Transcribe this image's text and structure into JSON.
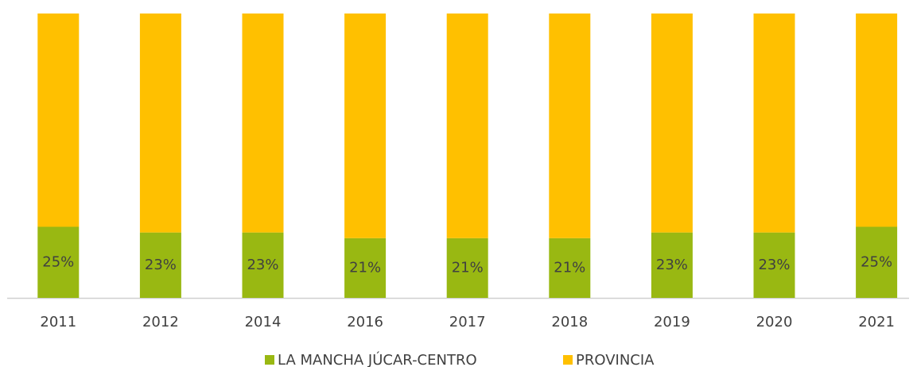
{
  "chart_data": {
    "type": "stacked_bar",
    "categories": [
      "2011",
      "2012",
      "2014",
      "2016",
      "2017",
      "2018",
      "2019",
      "2020",
      "2021"
    ],
    "series": [
      {
        "name": "LA MANCHA JÚCAR-CENTRO",
        "color": "#99b812",
        "values": [
          25,
          23,
          23,
          21,
          21,
          21,
          23,
          23,
          25
        ],
        "value_labels": [
          "25%",
          "23%",
          "23%",
          "21%",
          "21%",
          "21%",
          "23%",
          "23%",
          "25%"
        ]
      },
      {
        "name": "PROVINCIA",
        "color": "#ffc000",
        "values": [
          75,
          77,
          77,
          79,
          79,
          79,
          77,
          77,
          75
        ]
      }
    ],
    "ylim": [
      0,
      100
    ],
    "legend": "bottom"
  }
}
